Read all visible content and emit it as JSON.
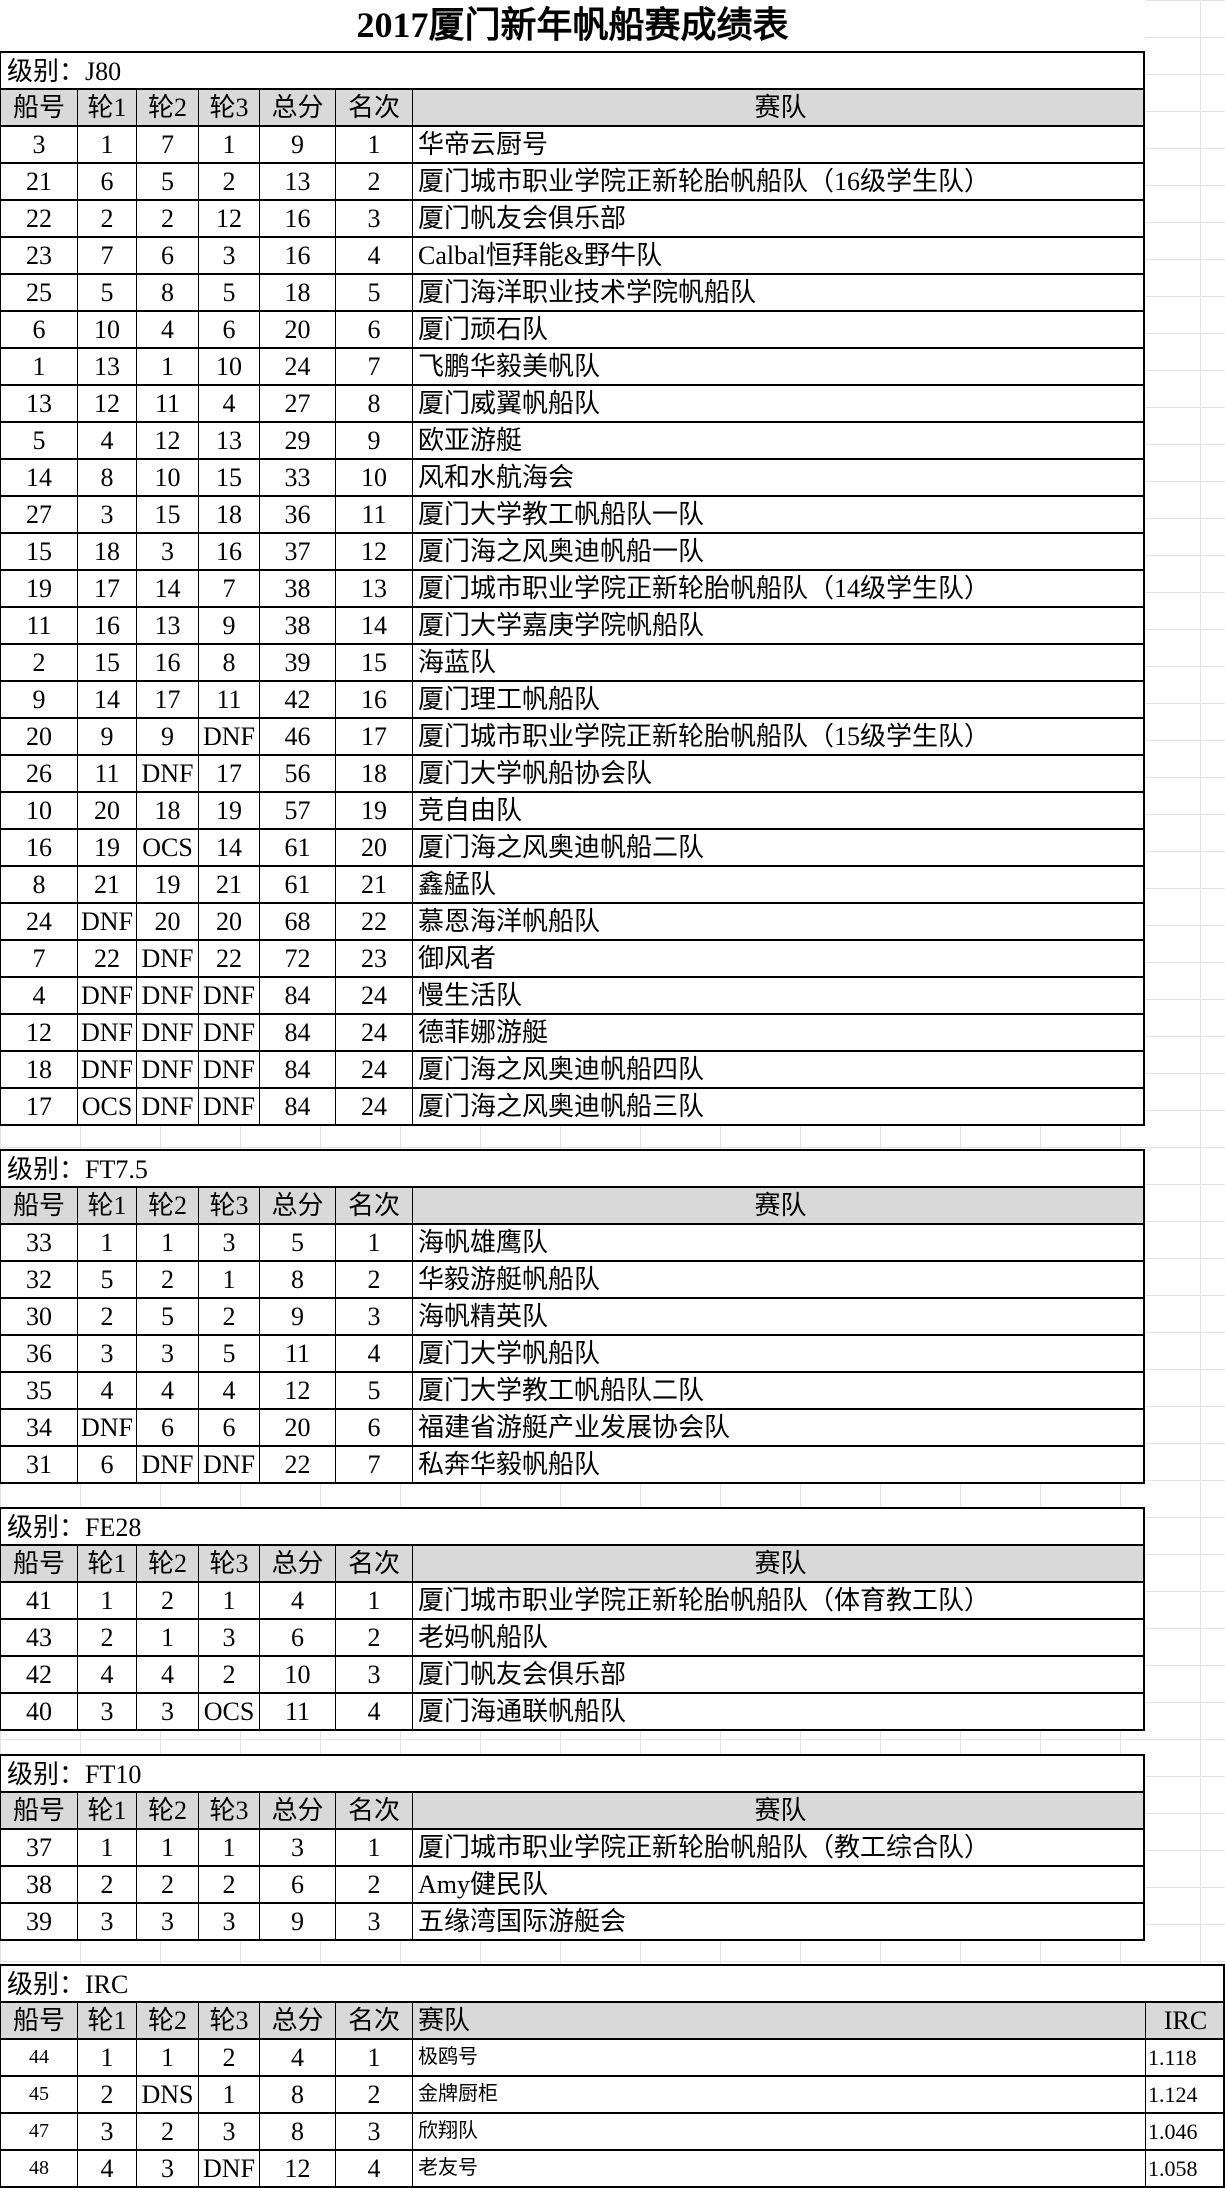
{
  "title": "2017厦门新年帆船赛成绩表",
  "class_prefix": "级别：",
  "headers": [
    "船号",
    "轮1",
    "轮2",
    "轮3",
    "总分",
    "名次",
    "赛队"
  ],
  "irc_header": "IRC",
  "sections": [
    {
      "class": "J80",
      "rows": [
        [
          "3",
          "1",
          "7",
          "1",
          "9",
          "1",
          "华帝云厨号"
        ],
        [
          "21",
          "6",
          "5",
          "2",
          "13",
          "2",
          "厦门城市职业学院正新轮胎帆船队（16级学生队）"
        ],
        [
          "22",
          "2",
          "2",
          "12",
          "16",
          "3",
          "厦门帆友会俱乐部"
        ],
        [
          "23",
          "7",
          "6",
          "3",
          "16",
          "4",
          "Calbal恒拜能&野牛队"
        ],
        [
          "25",
          "5",
          "8",
          "5",
          "18",
          "5",
          "厦门海洋职业技术学院帆船队"
        ],
        [
          "6",
          "10",
          "4",
          "6",
          "20",
          "6",
          "厦门顽石队"
        ],
        [
          "1",
          "13",
          "1",
          "10",
          "24",
          "7",
          "飞鹏华毅美帆队"
        ],
        [
          "13",
          "12",
          "11",
          "4",
          "27",
          "8",
          "厦门威翼帆船队"
        ],
        [
          "5",
          "4",
          "12",
          "13",
          "29",
          "9",
          "欧亚游艇"
        ],
        [
          "14",
          "8",
          "10",
          "15",
          "33",
          "10",
          "风和水航海会"
        ],
        [
          "27",
          "3",
          "15",
          "18",
          "36",
          "11",
          "厦门大学教工帆船队一队"
        ],
        [
          "15",
          "18",
          "3",
          "16",
          "37",
          "12",
          "厦门海之风奥迪帆船一队"
        ],
        [
          "19",
          "17",
          "14",
          "7",
          "38",
          "13",
          "厦门城市职业学院正新轮胎帆船队（14级学生队）"
        ],
        [
          "11",
          "16",
          "13",
          "9",
          "38",
          "14",
          "厦门大学嘉庚学院帆船队"
        ],
        [
          "2",
          "15",
          "16",
          "8",
          "39",
          "15",
          "海蓝队"
        ],
        [
          "9",
          "14",
          "17",
          "11",
          "42",
          "16",
          "厦门理工帆船队"
        ],
        [
          "20",
          "9",
          "9",
          "DNF",
          "46",
          "17",
          "厦门城市职业学院正新轮胎帆船队（15级学生队）"
        ],
        [
          "26",
          "11",
          "DNF",
          "17",
          "56",
          "18",
          "厦门大学帆船协会队"
        ],
        [
          "10",
          "20",
          "18",
          "19",
          "57",
          "19",
          "竞自由队"
        ],
        [
          "16",
          "19",
          "OCS",
          "14",
          "61",
          "20",
          "厦门海之风奥迪帆船二队"
        ],
        [
          "8",
          "21",
          "19",
          "21",
          "61",
          "21",
          "鑫艋队"
        ],
        [
          "24",
          "DNF",
          "20",
          "20",
          "68",
          "22",
          "慕恩海洋帆船队"
        ],
        [
          "7",
          "22",
          "DNF",
          "22",
          "72",
          "23",
          "御风者"
        ],
        [
          "4",
          "DNF",
          "DNF",
          "DNF",
          "84",
          "24",
          "慢生活队"
        ],
        [
          "12",
          "DNF",
          "DNF",
          "DNF",
          "84",
          "24",
          "德菲娜游艇"
        ],
        [
          "18",
          "DNF",
          "DNF",
          "DNF",
          "84",
          "24",
          "厦门海之风奥迪帆船四队"
        ],
        [
          "17",
          "OCS",
          "DNF",
          "DNF",
          "84",
          "24",
          "厦门海之风奥迪帆船三队"
        ]
      ]
    },
    {
      "class": "FT7.5",
      "rows": [
        [
          "33",
          "1",
          "1",
          "3",
          "5",
          "1",
          "海帆雄鹰队"
        ],
        [
          "32",
          "5",
          "2",
          "1",
          "8",
          "2",
          "华毅游艇帆船队"
        ],
        [
          "30",
          "2",
          "5",
          "2",
          "9",
          "3",
          "海帆精英队"
        ],
        [
          "36",
          "3",
          "3",
          "5",
          "11",
          "4",
          "厦门大学帆船队"
        ],
        [
          "35",
          "4",
          "4",
          "4",
          "12",
          "5",
          "厦门大学教工帆船队二队"
        ],
        [
          "34",
          "DNF",
          "6",
          "6",
          "20",
          "6",
          "福建省游艇产业发展协会队"
        ],
        [
          "31",
          "6",
          "DNF",
          "DNF",
          "22",
          "7",
          "私奔华毅帆船队"
        ]
      ]
    },
    {
      "class": "FE28",
      "rows": [
        [
          "41",
          "1",
          "2",
          "1",
          "4",
          "1",
          "厦门城市职业学院正新轮胎帆船队（体育教工队）"
        ],
        [
          "43",
          "2",
          "1",
          "3",
          "6",
          "2",
          "老妈帆船队"
        ],
        [
          "42",
          "4",
          "4",
          "2",
          "10",
          "3",
          "厦门帆友会俱乐部"
        ],
        [
          "40",
          "3",
          "3",
          "OCS",
          "11",
          "4",
          "厦门海通联帆船队"
        ]
      ]
    },
    {
      "class": "FT10",
      "rows": [
        [
          "37",
          "1",
          "1",
          "1",
          "3",
          "1",
          "厦门城市职业学院正新轮胎帆船队（教工综合队）"
        ],
        [
          "38",
          "2",
          "2",
          "2",
          "6",
          "2",
          "Amy健民队"
        ],
        [
          "39",
          "3",
          "3",
          "3",
          "9",
          "3",
          "五缘湾国际游艇会"
        ]
      ]
    },
    {
      "class": "IRC",
      "irc": true,
      "rows": [
        [
          "44",
          "1",
          "1",
          "2",
          "4",
          "1",
          "极鸥号",
          "1.118"
        ],
        [
          "45",
          "2",
          "DNS",
          "1",
          "8",
          "2",
          "金牌厨柜",
          "1.124"
        ],
        [
          "47",
          "3",
          "2",
          "3",
          "8",
          "3",
          "欣翔队",
          "1.046"
        ],
        [
          "48",
          "4",
          "3",
          "DNF",
          "12",
          "4",
          "老友号",
          "1.058"
        ]
      ]
    }
  ]
}
